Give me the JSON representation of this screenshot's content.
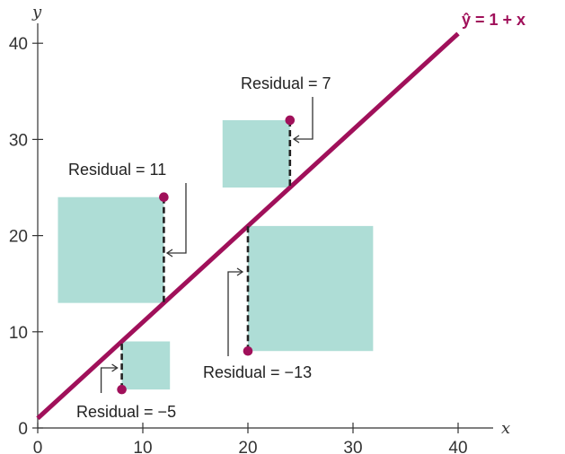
{
  "chart_data": {
    "type": "scatter",
    "xlabel": "x",
    "ylabel": "y",
    "xlim": [
      0,
      45
    ],
    "ylim": [
      0,
      43
    ],
    "x_ticks": [
      0,
      10,
      20,
      30,
      40
    ],
    "y_ticks": [
      0,
      10,
      20,
      30,
      40
    ],
    "regression_line": {
      "label": "ŷ = 1 + x",
      "intercept": 1,
      "slope": 1,
      "x_range": [
        0,
        40
      ]
    },
    "points": [
      {
        "x": 8,
        "y": 4,
        "fitted": 9,
        "residual": -5,
        "label": "Residual = −5"
      },
      {
        "x": 12,
        "y": 24,
        "fitted": 13,
        "residual": 11,
        "label": "Residual = 11"
      },
      {
        "x": 20,
        "y": 8,
        "fitted": 21,
        "residual": -13,
        "label": "Residual = −13"
      },
      {
        "x": 24,
        "y": 32,
        "fitted": 25,
        "residual": 7,
        "label": "Residual = 7"
      }
    ],
    "colors": {
      "line": "#a0105a",
      "points": "#a0105a",
      "squares": "#aeddd6",
      "axes": "#333333",
      "equation": "#a0105a"
    }
  }
}
